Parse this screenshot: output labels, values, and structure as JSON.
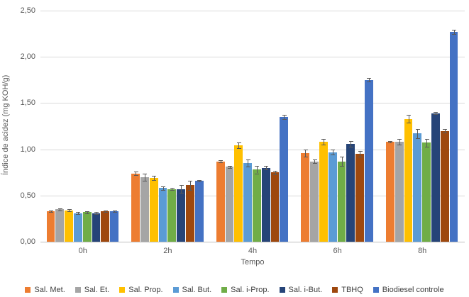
{
  "chart_data": {
    "type": "bar",
    "title": "",
    "xlabel": "Tempo",
    "ylabel": "Índice de acidez (mg KOH/g)",
    "ylim": [
      0,
      2.5
    ],
    "y_tick_step": 0.5,
    "y_tick_labels": [
      "0,00",
      "0,50",
      "1,00",
      "1,50",
      "2,00",
      "2,50"
    ],
    "grid": true,
    "legend_position": "bottom",
    "error_bars": true,
    "categories": [
      "0h",
      "2h",
      "4h",
      "6h",
      "8h"
    ],
    "series": [
      {
        "name": "Sal. Met.",
        "color": "#ED7D31",
        "values": [
          0.33,
          0.74,
          0.87,
          0.96,
          1.08
        ],
        "errors": [
          0.01,
          0.02,
          0.01,
          0.04,
          0.01
        ]
      },
      {
        "name": "Sal. Et.",
        "color": "#A5A5A5",
        "values": [
          0.35,
          0.7,
          0.81,
          0.87,
          1.08
        ],
        "errors": [
          0.01,
          0.04,
          0.01,
          0.02,
          0.03
        ]
      },
      {
        "name": "Sal. Prop.",
        "color": "#FFC000",
        "values": [
          0.34,
          0.69,
          1.04,
          1.08,
          1.33
        ],
        "errors": [
          0.01,
          0.02,
          0.03,
          0.03,
          0.04
        ]
      },
      {
        "name": "Sal. But.",
        "color": "#5B9BD5",
        "values": [
          0.31,
          0.58,
          0.85,
          0.97,
          1.17
        ],
        "errors": [
          0.01,
          0.02,
          0.04,
          0.03,
          0.05
        ]
      },
      {
        "name": "Sal. i-Prop.",
        "color": "#70AD47",
        "values": [
          0.32,
          0.57,
          0.78,
          0.87,
          1.07
        ],
        "errors": [
          0.01,
          0.01,
          0.04,
          0.05,
          0.04
        ]
      },
      {
        "name": "Sal. i-But.",
        "color": "#264478",
        "values": [
          0.31,
          0.57,
          0.8,
          1.06,
          1.39
        ],
        "errors": [
          0.01,
          0.04,
          0.02,
          0.03,
          0.01
        ]
      },
      {
        "name": "TBHQ",
        "color": "#9E480E",
        "values": [
          0.33,
          0.61,
          0.75,
          0.95,
          1.2
        ],
        "errors": [
          0.01,
          0.05,
          0.02,
          0.03,
          0.02
        ]
      },
      {
        "name": "Biodiesel controle",
        "color": "#4472C4",
        "values": [
          0.33,
          0.66,
          1.35,
          1.75,
          2.27
        ],
        "errors": [
          0.01,
          0.01,
          0.02,
          0.02,
          0.02
        ]
      }
    ],
    "colors": {
      "gridline": "#d9d9d9",
      "axis_line": "#bfbfbf",
      "axis_text": "#595959",
      "error_bar": "#595959",
      "background": "#ffffff"
    }
  }
}
